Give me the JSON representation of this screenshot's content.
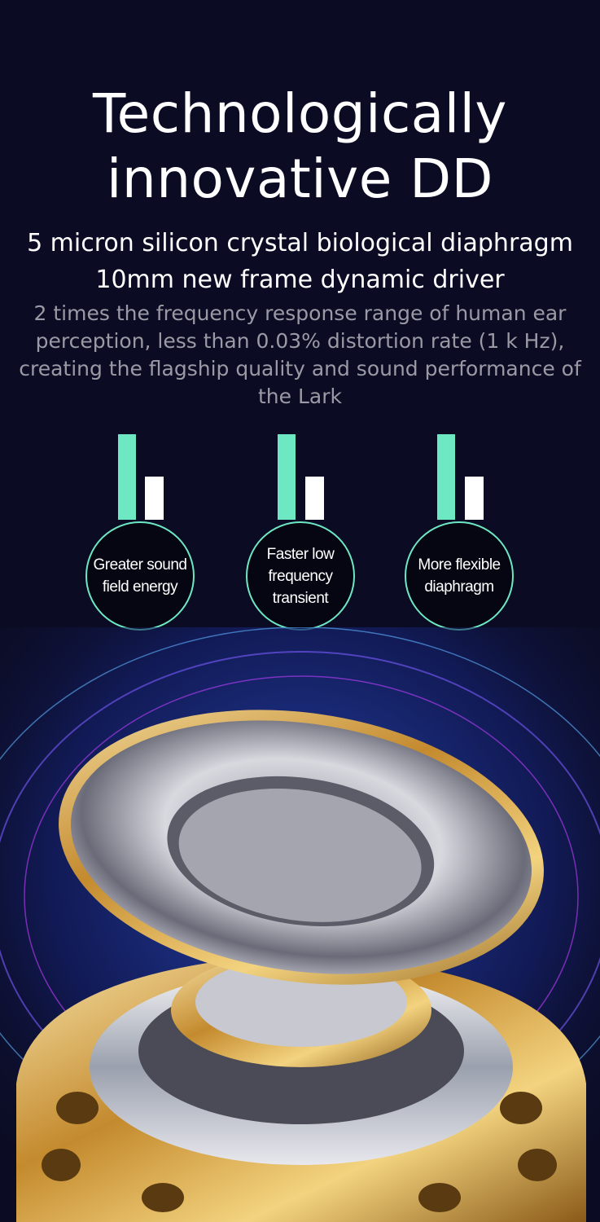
{
  "heading": {
    "line1": "Technologically",
    "line2": "innovative DD"
  },
  "subheading": {
    "line1": "5 micron silicon crystal biological diaphragm",
    "line2": "10mm new frame dynamic driver"
  },
  "description": "2 times the frequency response range of human ear perception, less than 0.03% distortion rate (1 k Hz), creating the flagship quality and sound performance of the Lark",
  "features": [
    {
      "label": "Greater sound\nfield energy",
      "icon": "bar-level-icon"
    },
    {
      "label": "Faster low\nfrequency\ntransient",
      "icon": "bar-level-icon"
    },
    {
      "label": "More flexible\ndiaphragm",
      "icon": "bar-level-icon"
    }
  ],
  "colors": {
    "background": "#0b0c24",
    "accent": "#6ee8c2",
    "text": "#ffffff",
    "muted": "#9a9aa5",
    "gold": "#d9a94a"
  },
  "image": {
    "subject": "dynamic-driver-illustration"
  }
}
